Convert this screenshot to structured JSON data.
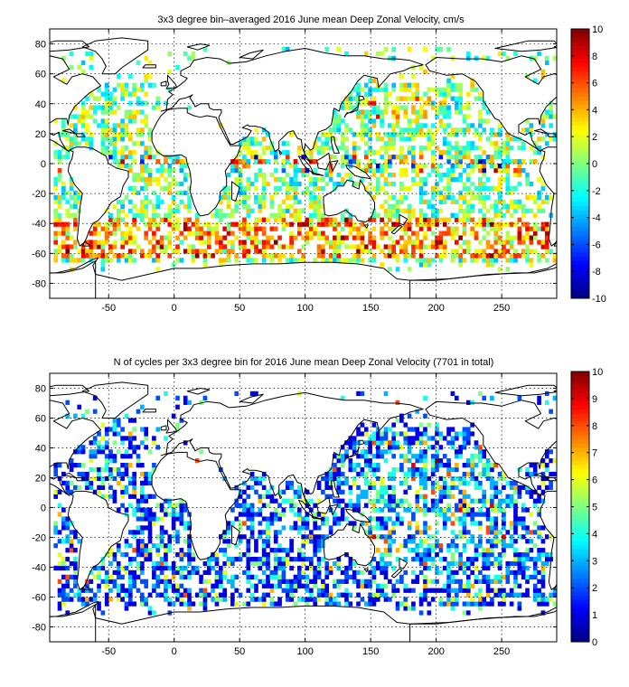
{
  "chart_data": [
    {
      "type": "heatmap",
      "title": "3x3 degree bin–averaged 2016 June mean Deep Zonal Velocity, cm/s",
      "xlabel": "",
      "ylabel": "",
      "xlim": [
        -95,
        292
      ],
      "ylim": [
        -90,
        90
      ],
      "xticks": [
        -50,
        0,
        50,
        100,
        150,
        200,
        250
      ],
      "yticks": [
        -80,
        -60,
        -40,
        -20,
        0,
        20,
        40,
        60,
        80
      ],
      "grid": true,
      "colormap": "jet",
      "colorbar": {
        "min": -10,
        "max": 10,
        "ticks": [
          -10,
          -8,
          -6,
          -4,
          -2,
          0,
          2,
          4,
          6,
          8,
          10
        ]
      },
      "bin_size_deg": 3,
      "notes_shown": "continental outlines"
    },
    {
      "type": "heatmap",
      "title": "N of cycles per 3x3 degree bin for 2016 June mean Deep Zonal Velocity (7701 in total)",
      "xlabel": "",
      "ylabel": "",
      "xlim": [
        -95,
        292
      ],
      "ylim": [
        -90,
        90
      ],
      "xticks": [
        -50,
        0,
        50,
        100,
        150,
        200,
        250
      ],
      "yticks": [
        -80,
        -60,
        -40,
        -20,
        0,
        20,
        40,
        60,
        80
      ],
      "grid": true,
      "colormap": "jet",
      "colorbar": {
        "min": 0,
        "max": 10,
        "ticks": [
          0,
          1,
          2,
          3,
          4,
          5,
          6,
          7,
          8,
          9,
          10
        ]
      },
      "bin_size_deg": 3,
      "total_cycles": 7701
    }
  ]
}
